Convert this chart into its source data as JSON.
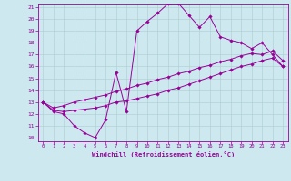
{
  "xlabel": "Windchill (Refroidissement éolien,°C)",
  "bg_color": "#cde8ef",
  "line_color": "#990099",
  "grid_color": "#b0cdd4",
  "x_values": [
    0,
    1,
    2,
    3,
    4,
    5,
    6,
    7,
    8,
    9,
    10,
    11,
    12,
    13,
    14,
    15,
    16,
    17,
    18,
    19,
    20,
    21,
    22,
    23
  ],
  "series1": [
    13.0,
    12.2,
    12.0,
    11.0,
    10.4,
    10.0,
    11.5,
    15.5,
    12.2,
    19.0,
    19.8,
    20.5,
    21.3,
    21.3,
    20.3,
    19.3,
    20.2,
    18.5,
    18.2,
    18.0,
    17.5,
    18.0,
    17.0,
    16.0
  ],
  "series2": [
    13.0,
    12.3,
    12.2,
    12.3,
    12.4,
    12.5,
    12.7,
    13.0,
    13.1,
    13.3,
    13.5,
    13.7,
    14.0,
    14.2,
    14.5,
    14.8,
    15.1,
    15.4,
    15.7,
    16.0,
    16.2,
    16.5,
    16.7,
    16.0
  ],
  "series3": [
    13.0,
    12.5,
    12.7,
    13.0,
    13.2,
    13.4,
    13.6,
    13.9,
    14.1,
    14.4,
    14.6,
    14.9,
    15.1,
    15.4,
    15.6,
    15.9,
    16.1,
    16.4,
    16.6,
    16.9,
    17.1,
    17.0,
    17.3,
    16.5
  ],
  "xlim": [
    -0.5,
    23.5
  ],
  "ylim": [
    9.7,
    21.3
  ],
  "yticks": [
    10,
    11,
    12,
    13,
    14,
    15,
    16,
    17,
    18,
    19,
    20,
    21
  ],
  "xticks": [
    0,
    1,
    2,
    3,
    4,
    5,
    6,
    7,
    8,
    9,
    10,
    11,
    12,
    13,
    14,
    15,
    16,
    17,
    18,
    19,
    20,
    21,
    22,
    23
  ]
}
